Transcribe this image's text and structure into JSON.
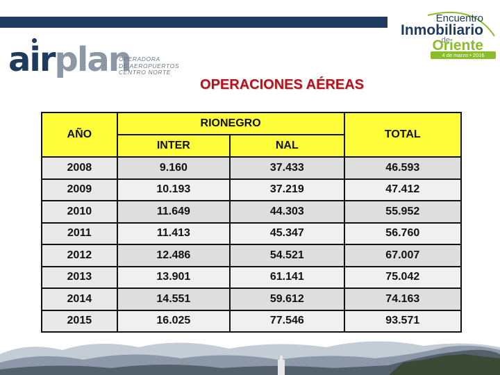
{
  "brand": {
    "logo_word_a": "air",
    "logo_word_b": "plan",
    "logo_sub": [
      "OPERADORA",
      "DE AEROPUERTOS",
      "CENTRO NORTE"
    ]
  },
  "event": {
    "line1": "Encuentro",
    "line2": "Inmobiliario",
    "line3": "de",
    "line4": "Oriente",
    "date": "4 de marzo • 2016"
  },
  "title": "OPERACIONES AÉREAS",
  "table": {
    "header": {
      "year": "AÑO",
      "group": "RIONEGRO",
      "inter": "INTER",
      "nal": "NAL",
      "total": "TOTAL"
    },
    "rows": [
      {
        "year": "2008",
        "inter": "9.160",
        "nal": "37.433",
        "total": "46.593"
      },
      {
        "year": "2009",
        "inter": "10.193",
        "nal": "37.219",
        "total": "47.412"
      },
      {
        "year": "2010",
        "inter": "11.649",
        "nal": "44.303",
        "total": "55.952"
      },
      {
        "year": "2011",
        "inter": "11.413",
        "nal": "45.347",
        "total": "56.760"
      },
      {
        "year": "2012",
        "inter": "12.486",
        "nal": "54.521",
        "total": "67.007"
      },
      {
        "year": "2013",
        "inter": "13.901",
        "nal": "61.141",
        "total": "75.042"
      },
      {
        "year": "2014",
        "inter": "14.551",
        "nal": "59.612",
        "total": "74.163"
      },
      {
        "year": "2015",
        "inter": "16.025",
        "nal": "77.546",
        "total": "93.571"
      }
    ]
  },
  "colors": {
    "header_fill": "#fffc3a",
    "title": "#b4141e",
    "brand_dark": "#1e3a5c",
    "brand_green": "#8bbd2a"
  }
}
